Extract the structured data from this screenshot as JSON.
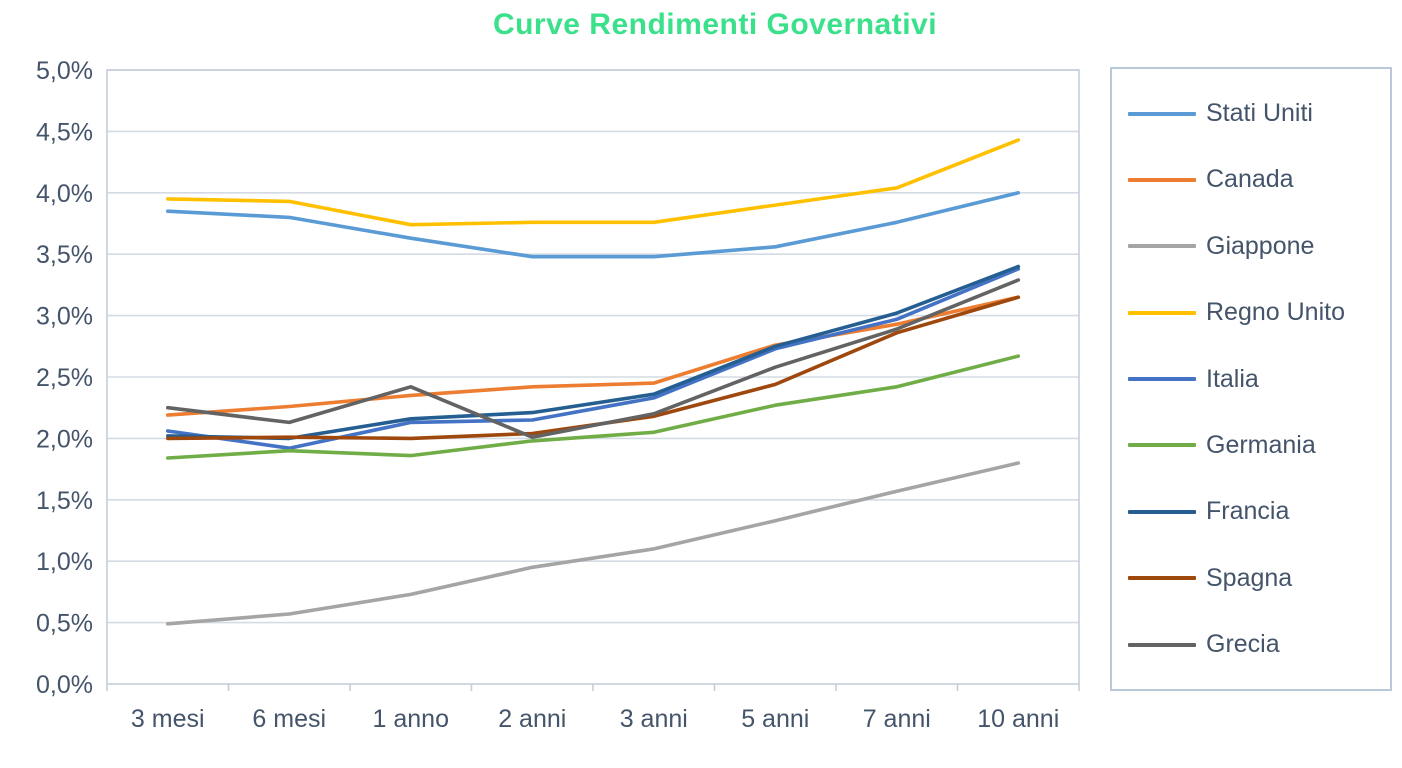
{
  "title": "Curve Rendimenti Governativi",
  "colors": {
    "title_text": "#3BE08A",
    "axis_text": "#44546A",
    "gridline": "#D3DBE4",
    "plot_border": "#C4CEDA",
    "legend_border": "#B9C9DA"
  },
  "chart_data": {
    "type": "line",
    "title": "Curve Rendimenti Governativi",
    "categories": [
      "3 mesi",
      "6 mesi",
      "1 anno",
      "2 anni",
      "3 anni",
      "5 anni",
      "7 anni",
      "10 anni"
    ],
    "y_tick_labels": [
      "0,0%",
      "0,5%",
      "1,0%",
      "1,5%",
      "2,0%",
      "2,5%",
      "3,0%",
      "3,5%",
      "4,0%",
      "4,5%",
      "5,0%"
    ],
    "ylabel": "",
    "xlabel": "",
    "ylim": [
      0,
      5
    ],
    "y_step": 0.5,
    "grid": true,
    "legend_position": "right",
    "series": [
      {
        "name": "Stati Uniti",
        "color": "#5B9BD5",
        "values": [
          3.85,
          3.8,
          3.63,
          3.48,
          3.48,
          3.56,
          3.76,
          4.0
        ]
      },
      {
        "name": "Canada",
        "color": "#ED7D31",
        "values": [
          2.19,
          2.26,
          2.35,
          2.42,
          2.45,
          2.76,
          2.93,
          3.15
        ]
      },
      {
        "name": "Giappone",
        "color": "#A5A5A5",
        "values": [
          0.49,
          0.57,
          0.73,
          0.95,
          1.1,
          1.33,
          1.57,
          1.8
        ]
      },
      {
        "name": "Regno Unito",
        "color": "#FFC000",
        "values": [
          3.95,
          3.93,
          3.74,
          3.76,
          3.76,
          3.9,
          4.04,
          4.43
        ]
      },
      {
        "name": "Italia",
        "color": "#4472C4",
        "values": [
          2.06,
          1.92,
          2.13,
          2.15,
          2.33,
          2.73,
          2.97,
          3.38
        ]
      },
      {
        "name": "Germania",
        "color": "#70AD47",
        "values": [
          1.84,
          1.9,
          1.86,
          1.98,
          2.05,
          2.27,
          2.42,
          2.67
        ]
      },
      {
        "name": "Francia",
        "color": "#255E91",
        "values": [
          2.02,
          2.0,
          2.16,
          2.21,
          2.36,
          2.75,
          3.02,
          3.4
        ]
      },
      {
        "name": "Spagna",
        "color": "#9E480E",
        "values": [
          2.0,
          2.01,
          2.0,
          2.04,
          2.18,
          2.44,
          2.86,
          3.15
        ]
      },
      {
        "name": "Grecia",
        "color": "#636363",
        "values": [
          2.25,
          2.13,
          2.42,
          2.01,
          2.2,
          2.58,
          2.89,
          3.29
        ]
      }
    ]
  }
}
